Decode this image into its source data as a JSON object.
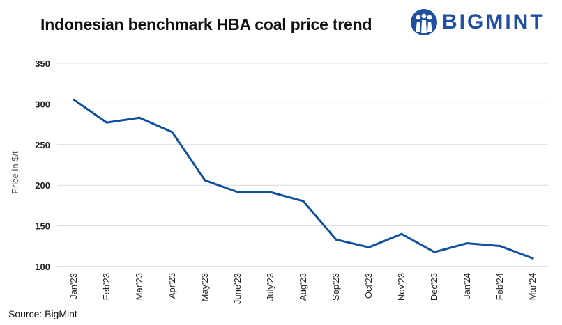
{
  "chart_data": {
    "type": "line",
    "title": "Indonesian benchmark HBA coal price trend",
    "xlabel": "",
    "ylabel": "Price in $/t",
    "ylim": [
      100,
      350
    ],
    "yticks": [
      100,
      150,
      200,
      250,
      300,
      350
    ],
    "grid": true,
    "categories": [
      "Jan'23",
      "Feb'23",
      "Mar'23",
      "Apr'23",
      "May'23",
      "June'23",
      "July'23",
      "Aug'23",
      "Sep'23",
      "Oct'23",
      "Nov'23",
      "Dec'23",
      "Jan'24",
      "Feb'24",
      "Mar'24"
    ],
    "series": [
      {
        "name": "HBA",
        "color": "#0e4fa0",
        "values": [
          305.2,
          277.1,
          283.0,
          265.3,
          206.0,
          191.6,
          191.5,
          180.4,
          133.1,
          123.7,
          140.0,
          117.8,
          128.6,
          125.3,
          110.1
        ]
      }
    ]
  },
  "brand": {
    "name": "BIGMINT",
    "color": "#1f4fa3",
    "icon": "bigmint-logo-icon"
  },
  "footer": {
    "source": "Source: BigMint"
  }
}
